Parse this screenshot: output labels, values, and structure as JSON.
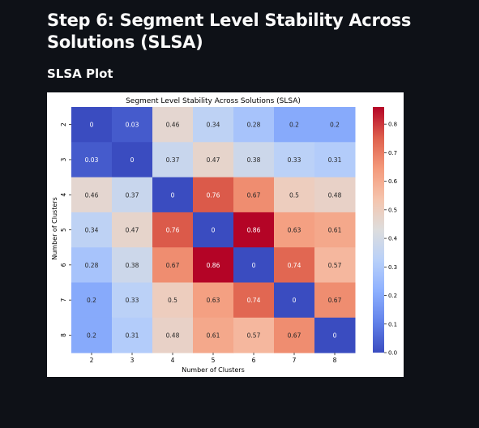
{
  "page": {
    "heading": "Step 6: Segment Level Stability Across Solutions (SLSA)",
    "subheading": "SLSA Plot"
  },
  "chart_data": {
    "type": "heatmap",
    "title": "Segment Level Stability Across Solutions (SLSA)",
    "xlabel": "Number of Clusters",
    "ylabel": "Number of Clusters",
    "x_categories": [
      "2",
      "3",
      "4",
      "5",
      "6",
      "7",
      "8"
    ],
    "y_categories": [
      "2",
      "3",
      "4",
      "5",
      "6",
      "7",
      "8"
    ],
    "values": [
      [
        0,
        0.03,
        0.46,
        0.34,
        0.28,
        0.2,
        0.2
      ],
      [
        0.03,
        0,
        0.37,
        0.47,
        0.38,
        0.33,
        0.31
      ],
      [
        0.46,
        0.37,
        0,
        0.76,
        0.67,
        0.5,
        0.48
      ],
      [
        0.34,
        0.47,
        0.76,
        0,
        0.86,
        0.63,
        0.61
      ],
      [
        0.28,
        0.38,
        0.67,
        0.86,
        0,
        0.74,
        0.57
      ],
      [
        0.2,
        0.33,
        0.5,
        0.63,
        0.74,
        0,
        0.67
      ],
      [
        0.2,
        0.31,
        0.48,
        0.61,
        0.57,
        0.67,
        0
      ]
    ],
    "colormap": "coolwarm",
    "vmin": 0,
    "vmax": 0.86,
    "colorbar_ticks": [
      0.0,
      0.1,
      0.2,
      0.3,
      0.4,
      0.5,
      0.6,
      0.7,
      0.8
    ],
    "colorbar_tick_labels": [
      "0.0",
      "0.1",
      "0.2",
      "0.3",
      "0.4",
      "0.5",
      "0.6",
      "0.7",
      "0.8"
    ]
  },
  "colors": {
    "background": "#0e1117",
    "text": "#fafafa",
    "plot_background": "#ffffff"
  }
}
